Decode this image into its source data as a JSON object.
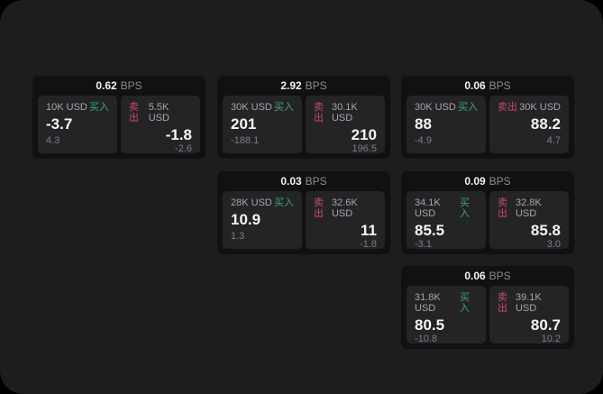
{
  "labels": {
    "buy": "买入",
    "sell": "卖出",
    "bps_suffix": "BPS"
  },
  "colors": {
    "buy_green": "#3da57a",
    "sell_red": "#ca4b61",
    "panel_bg": "#1d1d1f",
    "card_bg": "#111113",
    "pane_bg": "#242427"
  },
  "cards": [
    {
      "bps": "0.62",
      "buy": {
        "amount": "10K USD",
        "value": "-3.7",
        "sub": "4.3"
      },
      "sell": {
        "amount": "5.5K USD",
        "value": "-1.8",
        "sub": "-2.6"
      }
    },
    {
      "bps": "2.92",
      "buy": {
        "amount": "30K USD",
        "value": "201",
        "sub": "-188.1"
      },
      "sell": {
        "amount": "30.1K USD",
        "value": "210",
        "sub": "196.5"
      }
    },
    {
      "bps": "0.06",
      "buy": {
        "amount": "30K USD",
        "value": "88",
        "sub": "-4.9"
      },
      "sell": {
        "amount": "30K USD",
        "value": "88.2",
        "sub": "4.7"
      }
    },
    {
      "bps": "0.03",
      "buy": {
        "amount": "28K USD",
        "value": "10.9",
        "sub": "1.3"
      },
      "sell": {
        "amount": "32.6K USD",
        "value": "11",
        "sub": "-1.8"
      }
    },
    {
      "bps": "0.09",
      "buy": {
        "amount": "34.1K USD",
        "value": "85.5",
        "sub": "-3.1"
      },
      "sell": {
        "amount": "32.8K USD",
        "value": "85.8",
        "sub": "3.0"
      }
    },
    {
      "bps": "0.06",
      "buy": {
        "amount": "31.8K USD",
        "value": "80.5",
        "sub": "-10.8"
      },
      "sell": {
        "amount": "39.1K USD",
        "value": "80.7",
        "sub": "10.2"
      }
    }
  ]
}
